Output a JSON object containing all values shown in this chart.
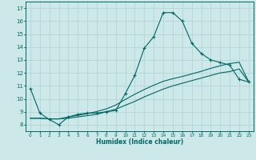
{
  "xlabel": "Humidex (Indice chaleur)",
  "bg_color": "#cce8e8",
  "grid_color": "#b8d8d8",
  "line_color": "#006666",
  "xlim": [
    -0.5,
    23.5
  ],
  "ylim": [
    7.5,
    17.5
  ],
  "xticks": [
    0,
    1,
    2,
    3,
    4,
    5,
    6,
    7,
    8,
    9,
    10,
    11,
    12,
    13,
    14,
    15,
    16,
    17,
    18,
    19,
    20,
    21,
    22,
    23
  ],
  "yticks": [
    8,
    9,
    10,
    11,
    12,
    13,
    14,
    15,
    16,
    17
  ],
  "curve1_x": [
    0,
    1,
    2,
    3,
    4,
    5,
    6,
    7,
    8,
    9,
    10,
    11,
    12,
    13,
    14,
    15,
    16,
    17,
    18,
    19,
    20,
    21,
    22,
    23
  ],
  "curve1_y": [
    10.8,
    8.9,
    8.4,
    8.0,
    8.6,
    8.8,
    8.9,
    8.9,
    9.0,
    9.1,
    10.4,
    11.8,
    13.9,
    14.8,
    16.65,
    16.65,
    16.0,
    14.3,
    13.5,
    13.0,
    12.8,
    12.6,
    11.5,
    11.3
  ],
  "curve2_x": [
    0,
    1,
    2,
    3,
    4,
    5,
    6,
    7,
    8,
    9,
    10,
    11,
    12,
    13,
    14,
    15,
    16,
    17,
    18,
    19,
    20,
    21,
    22,
    23
  ],
  "curve2_y": [
    8.5,
    8.5,
    8.45,
    8.45,
    8.5,
    8.6,
    8.7,
    8.8,
    9.0,
    9.2,
    9.5,
    9.8,
    10.15,
    10.45,
    10.75,
    11.0,
    11.2,
    11.4,
    11.6,
    11.8,
    12.0,
    12.1,
    12.3,
    11.3
  ],
  "curve3_x": [
    0,
    1,
    2,
    3,
    4,
    5,
    6,
    7,
    8,
    9,
    10,
    11,
    12,
    13,
    14,
    15,
    16,
    17,
    18,
    19,
    20,
    21,
    22,
    23
  ],
  "curve3_y": [
    8.5,
    8.5,
    8.45,
    8.45,
    8.6,
    8.72,
    8.85,
    9.02,
    9.22,
    9.52,
    9.95,
    10.35,
    10.72,
    11.05,
    11.35,
    11.55,
    11.72,
    11.92,
    12.12,
    12.35,
    12.55,
    12.72,
    12.82,
    11.3
  ]
}
